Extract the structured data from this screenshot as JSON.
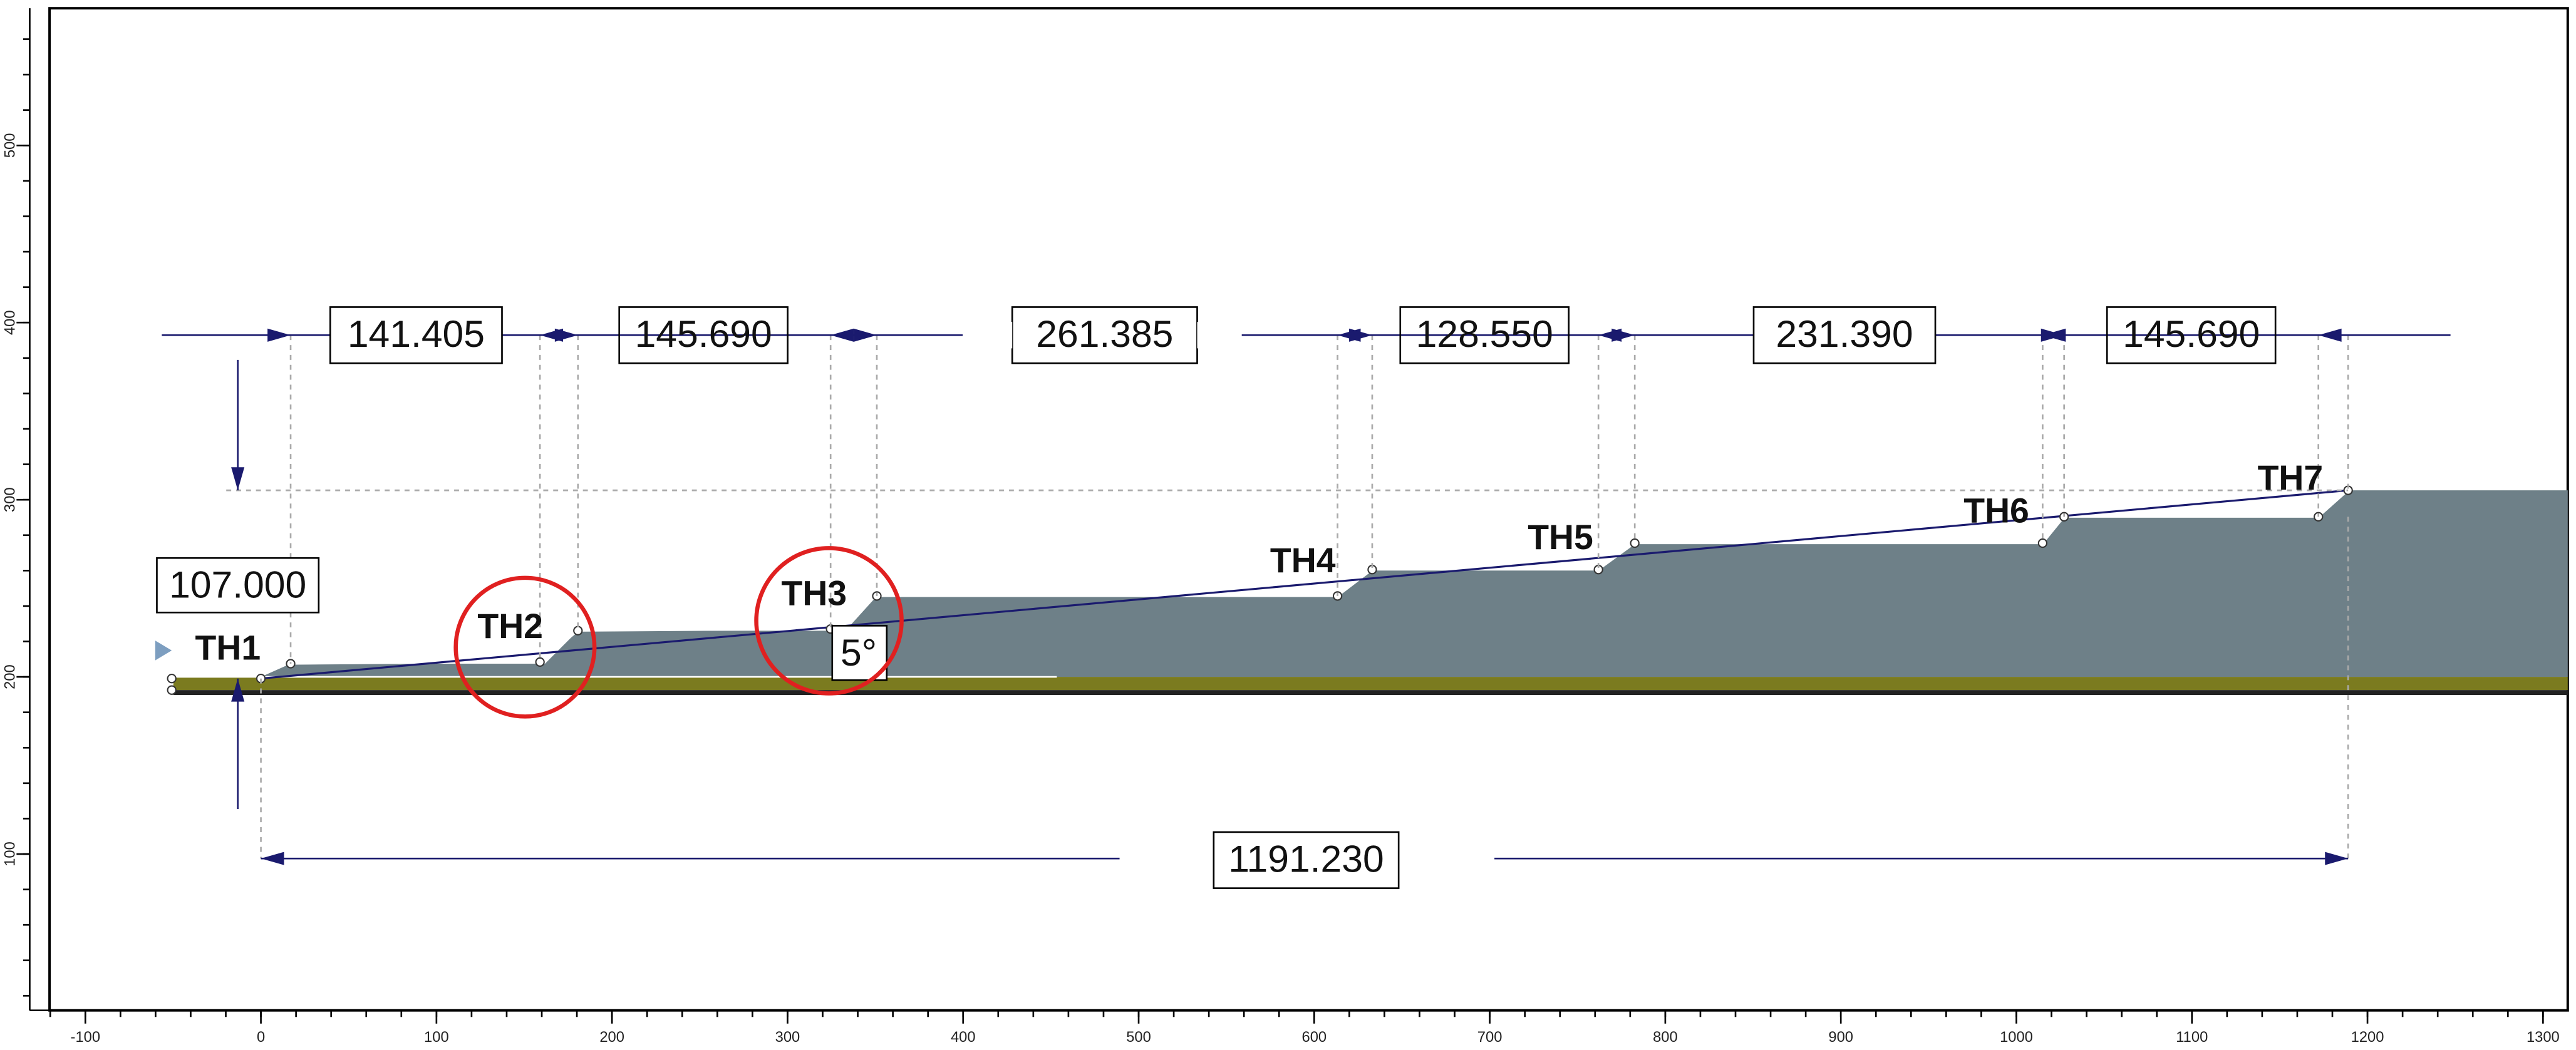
{
  "x_axis": {
    "ticks": [
      -100,
      0,
      100,
      200,
      300,
      400,
      500,
      600,
      700,
      800,
      900,
      1000,
      1100,
      1200,
      1300
    ]
  },
  "y_axis": {
    "ticks": [
      100,
      200,
      300,
      400,
      500
    ]
  },
  "bench_widths": [
    "141.405",
    "145.690",
    "261.385",
    "128.550",
    "231.390",
    "145.690"
  ],
  "height_dimension": "107.000",
  "total_length": "1191.230",
  "angle": "5°",
  "benches": [
    "TH1",
    "TH2",
    "TH3",
    "TH4",
    "TH5",
    "TH6",
    "TH7"
  ]
}
